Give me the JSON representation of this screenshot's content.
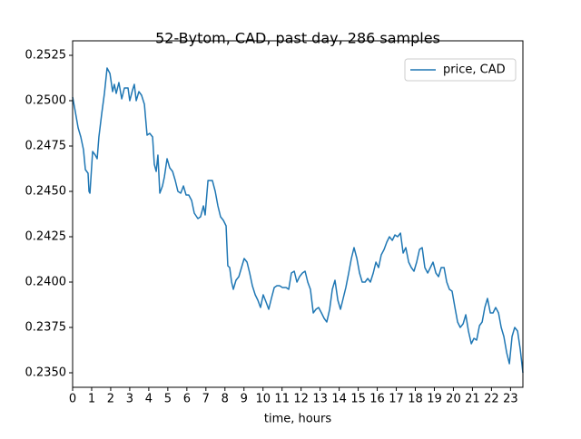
{
  "chart_data": {
    "type": "line",
    "title": "52-Bytom, CAD, past day, 286 samples",
    "xlabel": "time, hours",
    "legend": "upper right",
    "x": [
      0,
      0.14,
      0.29,
      0.43,
      0.57,
      0.67,
      0.81,
      0.86,
      0.91,
      1.05,
      1.19,
      1.29,
      1.38,
      1.53,
      1.67,
      1.81,
      1.96,
      2.1,
      2.19,
      2.29,
      2.43,
      2.58,
      2.72,
      2.91,
      3.0,
      3.15,
      3.24,
      3.34,
      3.48,
      3.62,
      3.77,
      3.91,
      4.05,
      4.2,
      4.29,
      4.39,
      4.48,
      4.58,
      4.72,
      4.82,
      4.96,
      5.1,
      5.25,
      5.39,
      5.53,
      5.68,
      5.82,
      5.96,
      6.1,
      6.25,
      6.39,
      6.58,
      6.72,
      6.87,
      6.96,
      7.11,
      7.25,
      7.34,
      7.49,
      7.63,
      7.77,
      7.92,
      8.06,
      8.15,
      8.25,
      8.35,
      8.44,
      8.58,
      8.73,
      8.87,
      9.01,
      9.16,
      9.3,
      9.44,
      9.59,
      9.73,
      9.87,
      10.01,
      10.16,
      10.3,
      10.44,
      10.59,
      10.73,
      10.87,
      11.02,
      11.21,
      11.35,
      11.49,
      11.64,
      11.78,
      11.92,
      12.07,
      12.21,
      12.35,
      12.49,
      12.64,
      12.78,
      12.92,
      13.07,
      13.21,
      13.35,
      13.5,
      13.64,
      13.78,
      13.93,
      14.07,
      14.21,
      14.35,
      14.5,
      14.64,
      14.78,
      14.93,
      15.07,
      15.21,
      15.36,
      15.5,
      15.64,
      15.79,
      15.93,
      16.07,
      16.21,
      16.36,
      16.5,
      16.64,
      16.79,
      16.93,
      17.07,
      17.22,
      17.36,
      17.5,
      17.65,
      17.79,
      17.93,
      18.07,
      18.22,
      18.36,
      18.5,
      18.65,
      18.79,
      18.93,
      19.08,
      19.22,
      19.36,
      19.51,
      19.65,
      19.79,
      19.93,
      20.08,
      20.22,
      20.36,
      20.51,
      20.65,
      20.79,
      20.94,
      21.08,
      21.22,
      21.37,
      21.51,
      21.65,
      21.79,
      21.94,
      22.08,
      22.22,
      22.37,
      22.51,
      22.65,
      22.8,
      22.94,
      23.08,
      23.22,
      23.37,
      23.51,
      23.65
    ],
    "series": [
      {
        "name": "price, CAD",
        "color": "#1f77b4",
        "values": [
          0.2502,
          0.2494,
          0.2485,
          0.248,
          0.2473,
          0.2462,
          0.246,
          0.245,
          0.2449,
          0.2472,
          0.247,
          0.2468,
          0.248,
          0.2493,
          0.2504,
          0.2518,
          0.2515,
          0.2505,
          0.2509,
          0.2504,
          0.251,
          0.2501,
          0.2507,
          0.2507,
          0.25,
          0.2506,
          0.2509,
          0.25,
          0.2505,
          0.2503,
          0.2498,
          0.2481,
          0.2482,
          0.248,
          0.2465,
          0.2461,
          0.247,
          0.2449,
          0.2453,
          0.2458,
          0.2468,
          0.2463,
          0.2461,
          0.2456,
          0.245,
          0.2449,
          0.2453,
          0.2448,
          0.2448,
          0.2445,
          0.2438,
          0.2435,
          0.2436,
          0.2442,
          0.2437,
          0.2456,
          0.2456,
          0.2456,
          0.245,
          0.2442,
          0.2436,
          0.2434,
          0.2431,
          0.2409,
          0.2408,
          0.24,
          0.2396,
          0.2401,
          0.2403,
          0.2408,
          0.2413,
          0.2411,
          0.2405,
          0.2398,
          0.2393,
          0.239,
          0.2386,
          0.2393,
          0.2389,
          0.2385,
          0.2391,
          0.2397,
          0.2398,
          0.2398,
          0.2397,
          0.2397,
          0.2396,
          0.2405,
          0.2406,
          0.24,
          0.2403,
          0.2405,
          0.2406,
          0.24,
          0.2396,
          0.2383,
          0.2385,
          0.2386,
          0.2383,
          0.238,
          0.2378,
          0.2385,
          0.2396,
          0.2401,
          0.239,
          0.2385,
          0.2391,
          0.2397,
          0.2405,
          0.2413,
          0.2419,
          0.2413,
          0.2405,
          0.24,
          0.24,
          0.2402,
          0.24,
          0.2405,
          0.2411,
          0.2408,
          0.2415,
          0.2418,
          0.2422,
          0.2425,
          0.2423,
          0.2426,
          0.2425,
          0.2427,
          0.2416,
          0.2419,
          0.2411,
          0.2408,
          0.2406,
          0.2411,
          0.2418,
          0.2419,
          0.2408,
          0.2405,
          0.2408,
          0.2411,
          0.2405,
          0.2403,
          0.2408,
          0.2408,
          0.24,
          0.2396,
          0.2395,
          0.2386,
          0.2378,
          0.2375,
          0.2377,
          0.2382,
          0.2373,
          0.2366,
          0.2369,
          0.2368,
          0.2376,
          0.2378,
          0.2386,
          0.2391,
          0.2383,
          0.2383,
          0.2386,
          0.2383,
          0.2375,
          0.237,
          0.2361,
          0.2355,
          0.237,
          0.2375,
          0.2373,
          0.2363,
          0.235
        ]
      }
    ],
    "xlim": [
      0,
      23.65
    ],
    "xticks": [
      0,
      1,
      2,
      3,
      4,
      5,
      6,
      7,
      8,
      9,
      10,
      11,
      12,
      13,
      14,
      15,
      16,
      17,
      18,
      19,
      20,
      21,
      22,
      23
    ],
    "ylim": [
      0.2342,
      0.2533
    ],
    "yticks": [
      {
        "value": 0.235,
        "label": "0.2350"
      },
      0.2375,
      {
        "value": 0.24,
        "label": "0.2400"
      },
      0.2425,
      {
        "value": 0.245,
        "label": "0.2450"
      },
      0.2475,
      {
        "value": 0.25,
        "label": "0.2500"
      },
      0.2525
    ]
  }
}
